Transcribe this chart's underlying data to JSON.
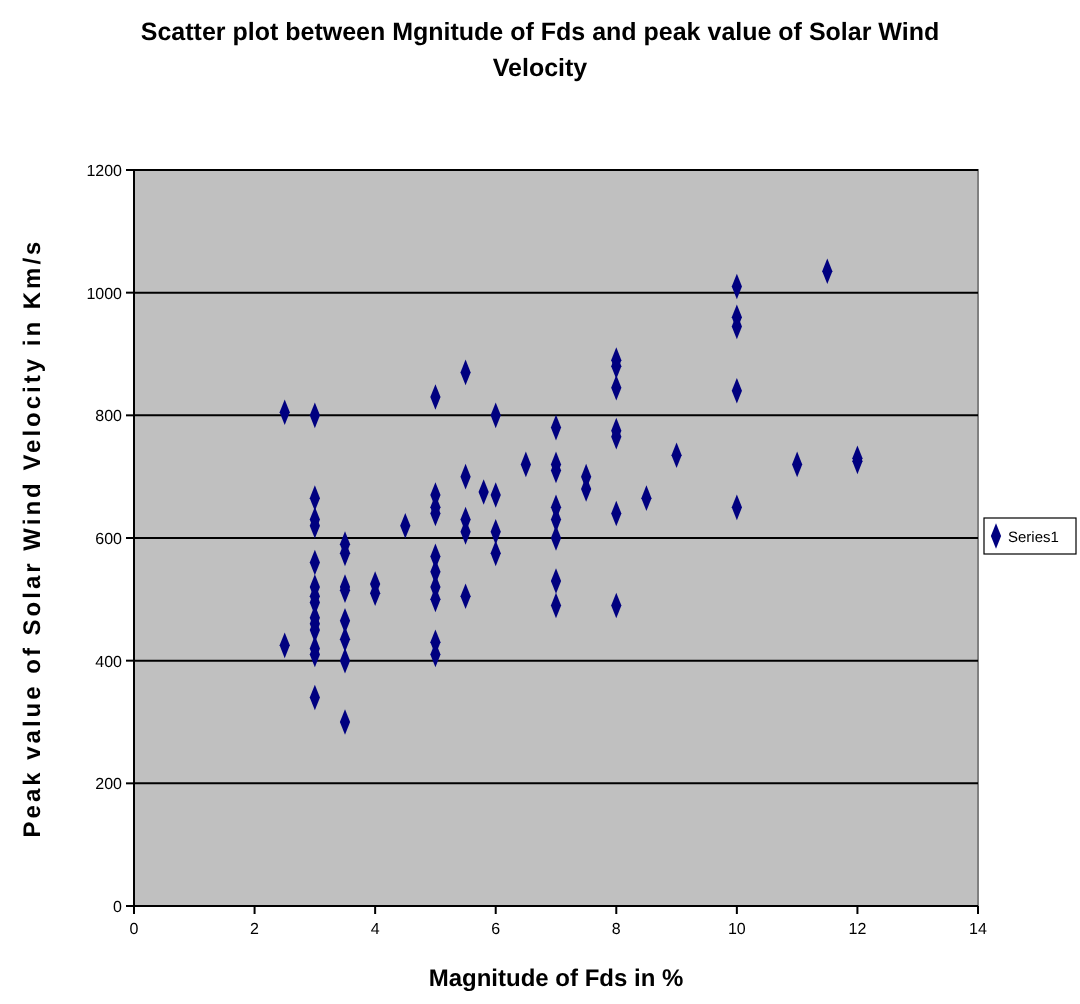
{
  "chart_data": {
    "type": "scatter",
    "title": "Scatter plot between Mgnitude of Fds and peak value of Solar Wind Velocity",
    "xlabel": "Magnitude of Fds in %",
    "ylabel": "Peak value of Solar Wind Velocity in Km/s",
    "xlim": [
      0,
      14
    ],
    "xticks": [
      0,
      2,
      4,
      6,
      8,
      10,
      12,
      14
    ],
    "ylim": [
      0,
      1200
    ],
    "yticks": [
      0,
      200,
      400,
      600,
      800,
      1000,
      1200
    ],
    "grid": "y",
    "legend": "right",
    "marker": "diamond",
    "series": [
      {
        "name": "Series1",
        "color": "#000080",
        "x": [
          2.5,
          2.5,
          3,
          3,
          3,
          3,
          3,
          3,
          3,
          3,
          3,
          3,
          3,
          3,
          3,
          3,
          3.5,
          3.5,
          3.5,
          3.5,
          3.5,
          3.5,
          3.5,
          3.5,
          4,
          4,
          4.5,
          5,
          5,
          5,
          5,
          5,
          5,
          5,
          5,
          5,
          5,
          5.5,
          5.5,
          5.5,
          5.5,
          5.5,
          5.8,
          6,
          6,
          6,
          6,
          6.5,
          7,
          7,
          7,
          7,
          7,
          7,
          7,
          7,
          7.5,
          7.5,
          8,
          8,
          8,
          8,
          8,
          8,
          8,
          8.5,
          9,
          10,
          10,
          10,
          10,
          10,
          11,
          11.5,
          12,
          12
        ],
        "values": [
          805,
          425,
          800,
          665,
          630,
          620,
          560,
          520,
          505,
          495,
          470,
          460,
          450,
          420,
          410,
          340,
          590,
          575,
          520,
          515,
          465,
          435,
          400,
          300,
          525,
          510,
          620,
          830,
          670,
          650,
          640,
          570,
          545,
          520,
          500,
          430,
          410,
          870,
          700,
          630,
          610,
          505,
          675,
          800,
          670,
          610,
          575,
          720,
          780,
          720,
          710,
          650,
          630,
          600,
          530,
          490,
          700,
          680,
          890,
          880,
          845,
          775,
          765,
          640,
          490,
          665,
          735,
          1010,
          960,
          945,
          840,
          650,
          720,
          1035,
          730,
          725
        ]
      }
    ]
  }
}
